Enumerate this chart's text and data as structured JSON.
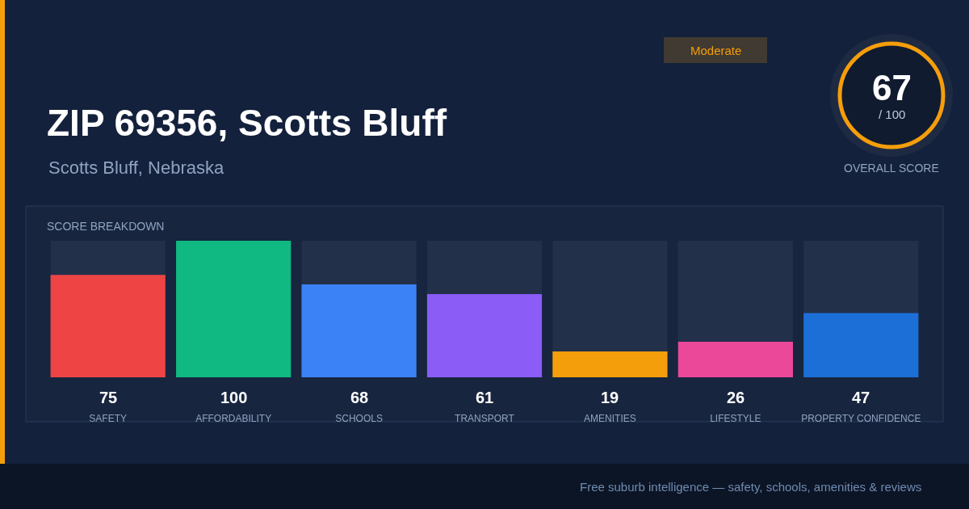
{
  "chart_data": {
    "type": "bar",
    "title": "ZIP 69356, Scotts Bluff",
    "subtitle": "Scotts Bluff, Nebraska",
    "categories": [
      "SAFETY",
      "AFFORDABILITY",
      "SCHOOLS",
      "TRANSPORT",
      "AMENITIES",
      "LIFESTYLE",
      "PROPERTY CONFIDENCE"
    ],
    "values": [
      75,
      100,
      68,
      61,
      19,
      26,
      47
    ],
    "colors": [
      "#ef4444",
      "#10b981",
      "#3b82f6",
      "#8b5cf6",
      "#f59e0b",
      "#ec4899",
      "#1d6fd8"
    ],
    "ylim": [
      0,
      100
    ],
    "data_labels": true,
    "annotations": [
      "SCORE BREAKDOWN",
      "Moderate",
      "67",
      "/ 100",
      "OVERALL SCORE",
      "Free suburb intelligence — safety, schools, amenities & reviews"
    ]
  }
}
